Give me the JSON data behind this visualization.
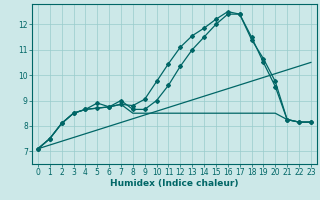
{
  "xlabel": "Humidex (Indice chaleur)",
  "bg_color": "#cce8e8",
  "grid_color": "#99cccc",
  "line_color": "#006666",
  "xlim": [
    -0.5,
    23.5
  ],
  "ylim": [
    6.5,
    12.8
  ],
  "xticks": [
    0,
    1,
    2,
    3,
    4,
    5,
    6,
    7,
    8,
    9,
    10,
    11,
    12,
    13,
    14,
    15,
    16,
    17,
    18,
    19,
    20,
    21,
    22,
    23
  ],
  "yticks": [
    7,
    8,
    9,
    10,
    11,
    12
  ],
  "line1_x": [
    0,
    1,
    2,
    3,
    4,
    5,
    6,
    7,
    8,
    9,
    10,
    11,
    12,
    13,
    14,
    15,
    16,
    17,
    18,
    19,
    20,
    21,
    22,
    23
  ],
  "line1_y": [
    7.1,
    7.5,
    8.1,
    8.5,
    8.65,
    8.7,
    8.75,
    8.85,
    8.8,
    9.05,
    9.75,
    10.45,
    11.1,
    11.55,
    11.85,
    12.2,
    12.5,
    12.4,
    11.4,
    10.65,
    9.75,
    8.25,
    8.15,
    8.15
  ],
  "line2_x": [
    0,
    1,
    2,
    3,
    4,
    5,
    6,
    7,
    8,
    9,
    10,
    11,
    12,
    13,
    14,
    15,
    16,
    17,
    18,
    19,
    20,
    21,
    22,
    23
  ],
  "line2_y": [
    7.1,
    7.5,
    8.1,
    8.5,
    8.65,
    8.9,
    8.75,
    9.0,
    8.65,
    8.65,
    9.0,
    9.6,
    10.35,
    11.0,
    11.5,
    12.0,
    12.4,
    12.4,
    11.5,
    10.5,
    9.55,
    8.25,
    8.15,
    8.15
  ],
  "line3_x": [
    0,
    1,
    2,
    3,
    4,
    5,
    6,
    7,
    8,
    9,
    10,
    11,
    12,
    13,
    14,
    15,
    16,
    17,
    18,
    19,
    20,
    21,
    22,
    23
  ],
  "line3_y": [
    7.1,
    7.5,
    8.1,
    8.5,
    8.65,
    8.7,
    8.75,
    8.85,
    8.5,
    8.5,
    8.5,
    8.5,
    8.5,
    8.5,
    8.5,
    8.5,
    8.5,
    8.5,
    8.5,
    8.5,
    8.5,
    8.25,
    8.15,
    8.15
  ],
  "line4_x": [
    0,
    23
  ],
  "line4_y": [
    7.1,
    10.5
  ]
}
